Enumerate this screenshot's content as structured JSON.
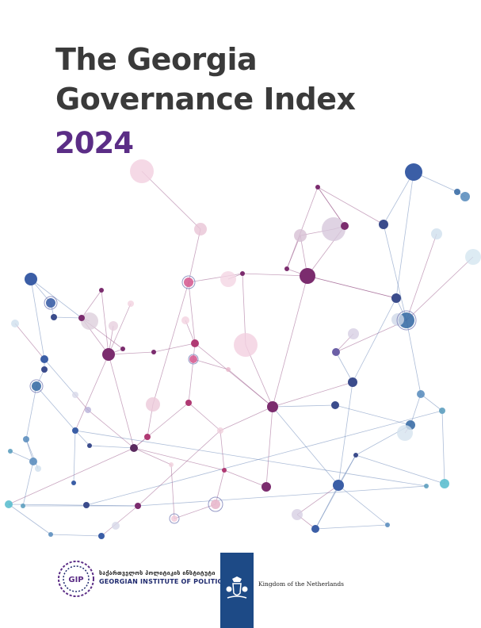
{
  "cover": {
    "title_line1": "The Georgia",
    "title_line2": "Governance Index",
    "year": "2024"
  },
  "logos": {
    "gip_badge": "GIP",
    "gip_name_georgian": "საქართველოს პოლიტიკის ინსტიტუტი",
    "gip_name_english": "GEORGIAN INSTITUTE OF POLITICS",
    "netherlands_text": "Kingdom of the Netherlands"
  },
  "colors": {
    "title": "#3a3a3a",
    "year": "#5b2d86",
    "nl_blue": "#1d4a86",
    "gip_blue": "#1f2a6e"
  }
}
